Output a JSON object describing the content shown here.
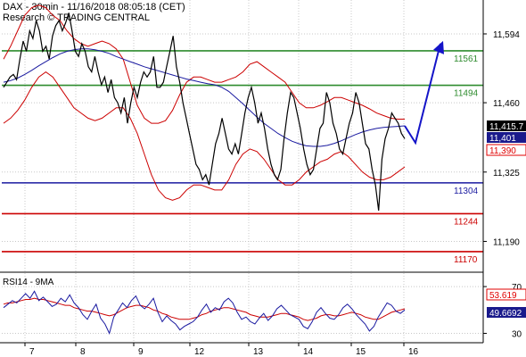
{
  "header": {
    "line1": "DAX - 30min - 11/16/2018 08:05:18 (CET)",
    "line2": "Research © TRADING CENTRAL"
  },
  "colors": {
    "price": "#000000",
    "bollinger": "#cc0000",
    "moving_average": "#1a1aa0",
    "resistance": "#2e8b2e",
    "support_blue": "#1a1aa0",
    "support_red": "#cc0000",
    "arrow": "#1414c8",
    "rsi": "#1a1aa0",
    "rsi_ma": "#cc0000",
    "tag_black": "#000000",
    "tag_blue": "#1a1a8c",
    "tag_red": "#e00000"
  },
  "chart_data": [
    {
      "type": "line",
      "title": "DAX - 30min",
      "x_tick_labels": [
        "7",
        "8",
        "9",
        "12",
        "13",
        "14",
        "15",
        "16"
      ],
      "y_tick_labels": [
        "11,594",
        "11,460",
        "11,325",
        "11,190"
      ],
      "ylim": [
        11130,
        11660
      ],
      "levels": [
        {
          "label": "11561",
          "value": 11561,
          "color_key": "resistance"
        },
        {
          "label": "11494",
          "value": 11494,
          "color_key": "resistance"
        },
        {
          "label": "11304",
          "value": 11304,
          "color_key": "support_blue"
        },
        {
          "label": "11244",
          "value": 11244,
          "color_key": "support_red"
        },
        {
          "label": "11170",
          "value": 11170,
          "color_key": "support_red"
        }
      ],
      "price_tags": [
        {
          "label": "11,415.7",
          "value": 11415.7,
          "color_key": "tag_black"
        },
        {
          "label": "11,401",
          "value": 11401,
          "color_key": "tag_blue"
        },
        {
          "label": "11,390",
          "value": 11390,
          "color_key": "tag_red"
        }
      ],
      "series": [
        {
          "color_key": "price",
          "values": [
            11490,
            11500,
            11510,
            11515,
            11505,
            11545,
            11580,
            11560,
            11600,
            11585,
            11620,
            11600,
            11560,
            11570,
            11545,
            11590,
            11610,
            11620,
            11600,
            11615,
            11635,
            11600,
            11560,
            11550,
            11575,
            11560,
            11530,
            11520,
            11550,
            11520,
            11495,
            11510,
            11480,
            11505,
            11470,
            11460,
            11440,
            11470,
            11420,
            11460,
            11490,
            11470,
            11500,
            11520,
            11510,
            11520,
            11550,
            11490,
            11490,
            11500,
            11530,
            11560,
            11590,
            11530,
            11500,
            11460,
            11430,
            11400,
            11370,
            11340,
            11330,
            11310,
            11320,
            11300,
            11340,
            11380,
            11400,
            11430,
            11400,
            11370,
            11360,
            11380,
            11360,
            11400,
            11440,
            11470,
            11490,
            11460,
            11420,
            11440,
            11410,
            11370,
            11340,
            11320,
            11310,
            11330,
            11390,
            11440,
            11480,
            11470,
            11440,
            11410,
            11370,
            11340,
            11320,
            11330,
            11370,
            11410,
            11420,
            11480,
            11460,
            11420,
            11400,
            11370,
            11360,
            11390,
            11420,
            11440,
            11480,
            11460,
            11420,
            11380,
            11370,
            11330,
            11300,
            11250,
            11350,
            11390,
            11410,
            11440,
            11430,
            11420,
            11400,
            11390
          ]
        },
        {
          "color_key": "moving_average",
          "values": [
            11500,
            11503,
            11508,
            11515,
            11523,
            11532,
            11540,
            11548,
            11555,
            11560,
            11563,
            11565,
            11565,
            11563,
            11560,
            11556,
            11550,
            11545,
            11540,
            11535,
            11530,
            11526,
            11522,
            11518,
            11514,
            11510,
            11506,
            11503,
            11500,
            11497,
            11495,
            11490,
            11482,
            11470,
            11458,
            11445,
            11432,
            11420,
            11410,
            11400,
            11392,
            11385,
            11380,
            11376,
            11375,
            11375,
            11377,
            11381,
            11386,
            11392,
            11398,
            11403,
            11407,
            11410,
            11412,
            11413,
            11414,
            11415
          ]
        },
        {
          "color_key": "bollinger",
          "values": [
            11545,
            11570,
            11600,
            11630,
            11645,
            11650,
            11645,
            11630,
            11620,
            11600,
            11585,
            11575,
            11570,
            11575,
            11580,
            11575,
            11565,
            11545,
            11500,
            11455,
            11430,
            11420,
            11420,
            11425,
            11445,
            11475,
            11500,
            11510,
            11510,
            11505,
            11500,
            11500,
            11505,
            11510,
            11520,
            11535,
            11540,
            11530,
            11520,
            11510,
            11500,
            11480,
            11460,
            11450,
            11450,
            11455,
            11462,
            11470,
            11470,
            11465,
            11460,
            11455,
            11448,
            11440,
            11435,
            11430,
            11428,
            11428
          ]
        },
        {
          "color_key": "bollinger",
          "values": [
            11420,
            11430,
            11445,
            11465,
            11490,
            11510,
            11520,
            11510,
            11490,
            11470,
            11450,
            11440,
            11430,
            11425,
            11430,
            11440,
            11450,
            11450,
            11430,
            11400,
            11360,
            11320,
            11290,
            11275,
            11270,
            11275,
            11290,
            11300,
            11300,
            11295,
            11290,
            11290,
            11310,
            11340,
            11360,
            11370,
            11365,
            11350,
            11330,
            11310,
            11300,
            11300,
            11310,
            11325,
            11335,
            11345,
            11350,
            11360,
            11365,
            11355,
            11340,
            11325,
            11315,
            11310,
            11310,
            11315,
            11325,
            11335
          ]
        }
      ],
      "forecast_path": [
        [
          11415,
          11382
        ],
        [
          11382,
          11575
        ]
      ]
    },
    {
      "type": "line",
      "title": "RSI14 - 9MA",
      "y_tick_labels": [
        "70",
        "30"
      ],
      "ylim": [
        22,
        80
      ],
      "value_tags": [
        {
          "label": "53.619",
          "value": 53.619,
          "color_key": "tag_red"
        },
        {
          "label": "49.6692",
          "value": 49.6692,
          "color_key": "tag_blue"
        }
      ],
      "series": [
        {
          "color_key": "rsi",
          "values": [
            52,
            55,
            58,
            56,
            60,
            64,
            60,
            66,
            58,
            61,
            57,
            53,
            55,
            60,
            57,
            63,
            56,
            52,
            46,
            42,
            49,
            55,
            43,
            38,
            30,
            44,
            50,
            56,
            52,
            58,
            62,
            54,
            51,
            55,
            60,
            48,
            40,
            45,
            41,
            38,
            33,
            36,
            38,
            40,
            44,
            50,
            55,
            48,
            52,
            50,
            57,
            60,
            56,
            48,
            42,
            44,
            40,
            38,
            43,
            47,
            41,
            45,
            51,
            54,
            50,
            46,
            44,
            42,
            36,
            34,
            40,
            48,
            52,
            47,
            43,
            42,
            46,
            52,
            55,
            51,
            46,
            42,
            38,
            32,
            36,
            44,
            50,
            56,
            54,
            49,
            47,
            50
          ]
        },
        {
          "color_key": "rsi_ma",
          "values": [
            55,
            56,
            56,
            57,
            58,
            59,
            59,
            60,
            59,
            59,
            58,
            57,
            56,
            55,
            54,
            54,
            52,
            51,
            50,
            49,
            49,
            48,
            47,
            46,
            45,
            46,
            48,
            50,
            52,
            53,
            54,
            54,
            53,
            52,
            50,
            49,
            47,
            46,
            44,
            43,
            42,
            42,
            42,
            43,
            44,
            46,
            47,
            49,
            50,
            51,
            52,
            52,
            51,
            50,
            49,
            48,
            46,
            45,
            44,
            44,
            44,
            45,
            46,
            47,
            47,
            46,
            45,
            44,
            42,
            41,
            42,
            43,
            45,
            46,
            46,
            45,
            45,
            46,
            47,
            48,
            47,
            46,
            44,
            43,
            42,
            42,
            44,
            46,
            48,
            49,
            50,
            51
          ]
        }
      ]
    }
  ]
}
